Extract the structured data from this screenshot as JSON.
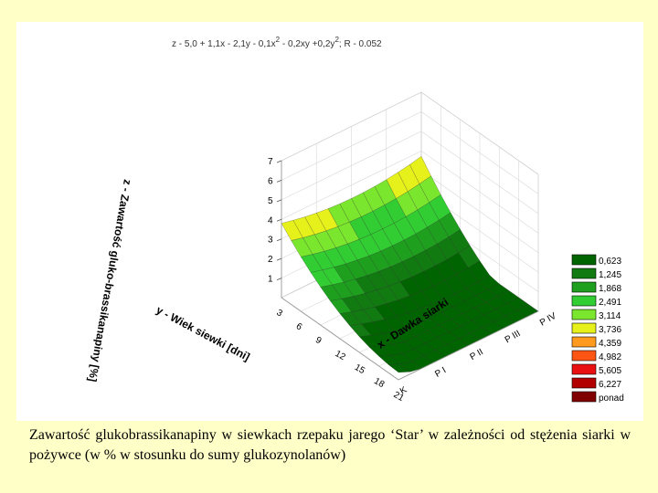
{
  "equation": {
    "p1": "z - 5,0 + 1,1x - 2,1y - 0,1x",
    "e1": "2",
    "p2": " - 0,2xy +0,2y",
    "e2": "2",
    "p3": "; R - 0.052"
  },
  "caption": "Zawartość glukobrassikanapiny w siewkach rzepaku jarego ‘Star’ w zależności od stężenia siarki w pożywce (w % w stosunku do sumy glukozynolanów)",
  "chart_data": {
    "type": "surface3d",
    "title": "",
    "z_label": "z - Zawartość gluko-brassikanapiny [%]",
    "y_label": "y - Wiek siewki [dni]",
    "x_label": "x - Dawka siarki",
    "z_ticks": [
      "1",
      "2",
      "3",
      "4",
      "5",
      "6",
      "7"
    ],
    "y_ticks": [
      "3",
      "6",
      "9",
      "12",
      "15",
      "18",
      "21"
    ],
    "x_ticks": [
      "K",
      "P I",
      "P II",
      "P III",
      "P IV"
    ],
    "legend": [
      "0,623",
      "1,245",
      "1,868",
      "2,491",
      "3,114",
      "3,736",
      "4,359",
      "4,982",
      "5,605",
      "6,227",
      "ponad"
    ],
    "legend_colors": [
      "#006400",
      "#117a11",
      "#1ea01e",
      "#32cd32",
      "#7be62e",
      "#e6f01a",
      "#ff9a1e",
      "#ff5514",
      "#e81010",
      "#b20000",
      "#800000"
    ],
    "legend_placement": "right"
  }
}
